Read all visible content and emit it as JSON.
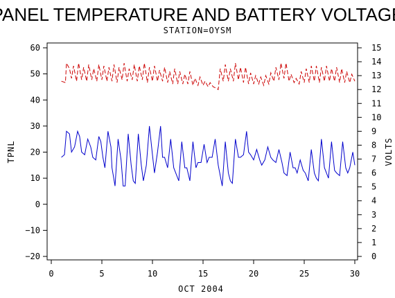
{
  "chart_data": {
    "type": "line",
    "title": "PANEL TEMPERATURE AND BATTERY VOLTAGE",
    "subtitle": "STATION=OYSM",
    "xlabel": "OCT 2004",
    "ylabel_left": "TPNL",
    "ylabel_right": "VOLTS",
    "xlim": [
      0,
      30
    ],
    "ylim_left": [
      -21,
      61
    ],
    "ylim_right": [
      0,
      15
    ],
    "x_ticks": [
      0,
      5,
      10,
      15,
      20,
      25,
      30
    ],
    "y_left_ticks": [
      -20,
      -10,
      0,
      10,
      20,
      30,
      40,
      50,
      60
    ],
    "y_right_ticks": [
      0,
      1,
      2,
      3,
      4,
      5,
      6,
      7,
      8,
      9,
      10,
      11,
      12,
      13,
      14,
      15
    ],
    "grid": false,
    "series": [
      {
        "axis": "left",
        "color": "#0000cc",
        "points": [
          [
            1.0,
            18
          ],
          [
            1.3,
            19
          ],
          [
            1.5,
            28
          ],
          [
            1.8,
            27
          ],
          [
            2.0,
            20
          ],
          [
            2.3,
            22
          ],
          [
            2.6,
            28
          ],
          [
            2.8,
            26
          ],
          [
            3.0,
            20
          ],
          [
            3.3,
            19
          ],
          [
            3.6,
            25
          ],
          [
            3.9,
            22
          ],
          [
            4.1,
            18
          ],
          [
            4.4,
            17
          ],
          [
            4.7,
            26
          ],
          [
            4.9,
            24
          ],
          [
            5.1,
            18
          ],
          [
            5.3,
            14
          ],
          [
            5.6,
            28
          ],
          [
            5.9,
            22
          ],
          [
            6.0,
            14
          ],
          [
            6.3,
            7
          ],
          [
            6.6,
            25
          ],
          [
            6.9,
            17
          ],
          [
            7.1,
            7
          ],
          [
            7.3,
            7
          ],
          [
            7.6,
            27
          ],
          [
            7.9,
            15
          ],
          [
            8.1,
            9
          ],
          [
            8.3,
            8
          ],
          [
            8.6,
            27
          ],
          [
            8.9,
            15
          ],
          [
            9.1,
            9
          ],
          [
            9.4,
            15
          ],
          [
            9.7,
            30
          ],
          [
            10.0,
            19
          ],
          [
            10.2,
            12
          ],
          [
            10.5,
            20
          ],
          [
            10.8,
            30
          ],
          [
            11.0,
            18
          ],
          [
            11.2,
            18
          ],
          [
            11.5,
            14
          ],
          [
            11.8,
            25
          ],
          [
            12.1,
            14
          ],
          [
            12.3,
            12
          ],
          [
            12.6,
            9
          ],
          [
            12.9,
            24
          ],
          [
            13.2,
            14
          ],
          [
            13.4,
            14
          ],
          [
            13.7,
            9
          ],
          [
            14.0,
            24
          ],
          [
            14.3,
            14
          ],
          [
            14.5,
            16
          ],
          [
            14.8,
            16
          ],
          [
            15.1,
            23
          ],
          [
            15.4,
            16
          ],
          [
            15.6,
            18
          ],
          [
            15.9,
            18
          ],
          [
            16.2,
            25
          ],
          [
            16.5,
            15
          ],
          [
            16.7,
            11
          ],
          [
            16.9,
            7
          ],
          [
            17.2,
            24
          ],
          [
            17.5,
            12
          ],
          [
            17.7,
            9
          ],
          [
            17.9,
            8
          ],
          [
            18.2,
            25
          ],
          [
            18.5,
            18
          ],
          [
            18.7,
            18
          ],
          [
            19.0,
            19
          ],
          [
            19.3,
            28
          ],
          [
            19.5,
            20
          ],
          [
            19.7,
            19
          ],
          [
            20.0,
            17
          ],
          [
            20.3,
            21
          ],
          [
            20.6,
            17
          ],
          [
            20.8,
            15
          ],
          [
            21.1,
            17
          ],
          [
            21.4,
            22
          ],
          [
            21.7,
            18
          ],
          [
            21.9,
            17
          ],
          [
            22.2,
            16
          ],
          [
            22.5,
            21
          ],
          [
            22.8,
            16
          ],
          [
            23.0,
            12
          ],
          [
            23.3,
            11
          ],
          [
            23.6,
            20
          ],
          [
            23.9,
            14
          ],
          [
            24.1,
            14
          ],
          [
            24.3,
            12
          ],
          [
            24.6,
            17
          ],
          [
            24.9,
            13
          ],
          [
            25.1,
            12
          ],
          [
            25.4,
            9
          ],
          [
            25.7,
            21
          ],
          [
            26.0,
            12
          ],
          [
            26.2,
            10
          ],
          [
            26.4,
            9
          ],
          [
            26.7,
            25
          ],
          [
            27.0,
            14
          ],
          [
            27.2,
            12
          ],
          [
            27.4,
            10
          ],
          [
            27.7,
            24
          ],
          [
            28.0,
            13
          ],
          [
            28.2,
            12
          ],
          [
            28.5,
            11
          ],
          [
            28.8,
            24
          ],
          [
            29.1,
            14
          ],
          [
            29.3,
            12
          ],
          [
            29.5,
            14
          ],
          [
            29.8,
            20
          ],
          [
            30.0,
            15
          ]
        ]
      },
      {
        "axis": "right",
        "color": "#cc0000",
        "points": [
          [
            1.0,
            12.6
          ],
          [
            1.4,
            12.5
          ],
          [
            1.5,
            13.9
          ],
          [
            1.8,
            13.5
          ],
          [
            2.0,
            12.8
          ],
          [
            2.2,
            13.7
          ],
          [
            2.5,
            12.6
          ],
          [
            2.7,
            13.9
          ],
          [
            3.0,
            12.7
          ],
          [
            3.2,
            13.6
          ],
          [
            3.5,
            12.6
          ],
          [
            3.7,
            13.8
          ],
          [
            4.0,
            12.7
          ],
          [
            4.2,
            13.5
          ],
          [
            4.5,
            12.6
          ],
          [
            4.7,
            13.8
          ],
          [
            5.0,
            12.7
          ],
          [
            5.2,
            13.7
          ],
          [
            5.5,
            12.6
          ],
          [
            5.7,
            13.6
          ],
          [
            6.0,
            12.6
          ],
          [
            6.2,
            13.8
          ],
          [
            6.5,
            12.5
          ],
          [
            6.7,
            13.6
          ],
          [
            7.0,
            12.7
          ],
          [
            7.2,
            13.9
          ],
          [
            7.5,
            12.6
          ],
          [
            7.7,
            13.5
          ],
          [
            8.0,
            12.7
          ],
          [
            8.2,
            13.8
          ],
          [
            8.5,
            12.6
          ],
          [
            8.7,
            13.7
          ],
          [
            9.0,
            12.7
          ],
          [
            9.2,
            13.9
          ],
          [
            9.5,
            12.5
          ],
          [
            9.7,
            13.6
          ],
          [
            10.0,
            12.6
          ],
          [
            10.2,
            13.7
          ],
          [
            10.5,
            12.6
          ],
          [
            10.7,
            13.4
          ],
          [
            11.0,
            12.6
          ],
          [
            11.2,
            13.6
          ],
          [
            11.5,
            12.5
          ],
          [
            11.7,
            13.3
          ],
          [
            12.0,
            12.4
          ],
          [
            12.2,
            13.5
          ],
          [
            12.5,
            12.4
          ],
          [
            12.7,
            13.3
          ],
          [
            13.0,
            12.4
          ],
          [
            13.2,
            13.1
          ],
          [
            13.5,
            12.4
          ],
          [
            13.7,
            13.3
          ],
          [
            14.0,
            12.3
          ],
          [
            14.2,
            12.8
          ],
          [
            14.5,
            12.3
          ],
          [
            14.7,
            12.9
          ],
          [
            15.0,
            12.3
          ],
          [
            15.2,
            12.6
          ],
          [
            15.5,
            12.2
          ],
          [
            15.7,
            12.5
          ],
          [
            16.0,
            12.2
          ],
          [
            16.3,
            12.1
          ],
          [
            16.5,
            12.0
          ],
          [
            16.7,
            13.5
          ],
          [
            17.0,
            12.6
          ],
          [
            17.2,
            13.8
          ],
          [
            17.5,
            12.6
          ],
          [
            17.7,
            13.5
          ],
          [
            18.0,
            12.6
          ],
          [
            18.2,
            13.9
          ],
          [
            18.5,
            12.7
          ],
          [
            18.7,
            13.6
          ],
          [
            19.0,
            12.5
          ],
          [
            19.2,
            13.6
          ],
          [
            19.5,
            12.4
          ],
          [
            19.7,
            13.2
          ],
          [
            20.0,
            12.4
          ],
          [
            20.2,
            13.0
          ],
          [
            20.5,
            12.4
          ],
          [
            20.7,
            12.9
          ],
          [
            21.0,
            12.3
          ],
          [
            21.2,
            13.0
          ],
          [
            21.5,
            12.4
          ],
          [
            21.7,
            13.2
          ],
          [
            22.0,
            12.6
          ],
          [
            22.2,
            13.6
          ],
          [
            22.5,
            12.7
          ],
          [
            22.7,
            13.9
          ],
          [
            23.0,
            12.8
          ],
          [
            23.2,
            13.9
          ],
          [
            23.5,
            12.6
          ],
          [
            23.7,
            13.1
          ],
          [
            24.0,
            12.5
          ],
          [
            24.2,
            12.8
          ],
          [
            24.5,
            12.4
          ],
          [
            24.7,
            13.3
          ],
          [
            25.0,
            12.5
          ],
          [
            25.2,
            13.5
          ],
          [
            25.5,
            12.5
          ],
          [
            25.7,
            13.7
          ],
          [
            26.0,
            12.6
          ],
          [
            26.2,
            13.7
          ],
          [
            26.5,
            12.5
          ],
          [
            26.7,
            13.6
          ],
          [
            27.0,
            12.6
          ],
          [
            27.2,
            13.7
          ],
          [
            27.5,
            12.6
          ],
          [
            27.7,
            13.5
          ],
          [
            28.0,
            12.6
          ],
          [
            28.2,
            13.6
          ],
          [
            28.5,
            12.5
          ],
          [
            28.7,
            13.5
          ],
          [
            29.0,
            12.5
          ],
          [
            29.2,
            13.3
          ],
          [
            29.5,
            12.5
          ],
          [
            29.7,
            13.1
          ],
          [
            30.0,
            12.6
          ]
        ]
      }
    ]
  }
}
